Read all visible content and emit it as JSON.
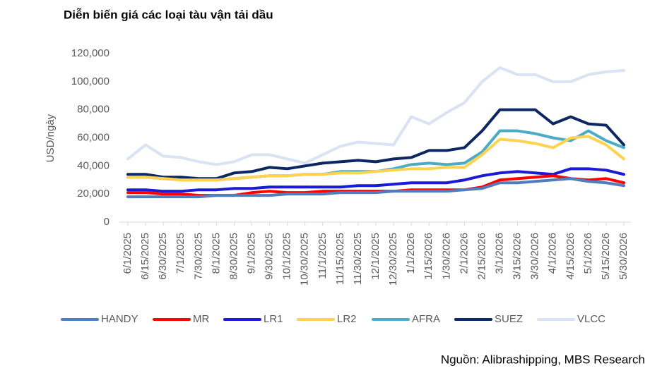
{
  "chart_data": {
    "type": "line",
    "title": "Diễn biến giá các loại tàu vận tải dầu",
    "y_label": "USD/ngày",
    "source": "Nguồn: Alibrashipping, MBS Research",
    "categories": [
      "6/1/2025",
      "6/15/2025",
      "6/30/2025",
      "7/1/2025",
      "7/30/2025",
      "8/1/2025",
      "8/30/2025",
      "9/1/2025",
      "9/30/2025",
      "10/1/2025",
      "10/30/2025",
      "11/1/2025",
      "11/15/2025",
      "11/30/2025",
      "12/1/2025",
      "12/30/2025",
      "1/1/2026",
      "1/15/2026",
      "1/30/2026",
      "2/1/2026",
      "2/15/2026",
      "3/1/2026",
      "3/15/2026",
      "3/30/2026",
      "4/1/2026",
      "4/15/2026",
      "5/1/2026",
      "5/15/2026",
      "5/30/2026"
    ],
    "ylim": [
      0,
      120000
    ],
    "yticks": [
      0,
      {
        "value": 20000,
        "label": "20,000"
      },
      {
        "value": 40000,
        "label": "40,000"
      },
      {
        "value": 60000,
        "label": "60,000"
      },
      {
        "value": 80000,
        "label": "80,000"
      },
      {
        "value": 100000,
        "label": "100,000"
      },
      {
        "value": 120000,
        "label": "120,000"
      }
    ],
    "legend": "bottom",
    "series": [
      {
        "name": "HANDY",
        "color": "#4f7dbd",
        "values": [
          18000,
          18000,
          18000,
          18000,
          18000,
          19000,
          19000,
          19000,
          19000,
          20000,
          20000,
          20000,
          21000,
          21000,
          21000,
          22000,
          22000,
          22000,
          22000,
          23000,
          24000,
          28000,
          28000,
          29000,
          30000,
          31000,
          29000,
          28000,
          26000
        ]
      },
      {
        "name": "MR",
        "color": "#ff0000",
        "values": [
          21000,
          21000,
          20000,
          20000,
          19000,
          19000,
          19000,
          21000,
          22000,
          21000,
          21000,
          22000,
          22000,
          22000,
          22000,
          22000,
          23000,
          23000,
          23000,
          23000,
          25000,
          30000,
          31000,
          32000,
          33000,
          31000,
          30000,
          31000,
          28000
        ]
      },
      {
        "name": "LR1",
        "color": "#1a1ad8",
        "values": [
          23000,
          23000,
          22000,
          22000,
          23000,
          23000,
          24000,
          24000,
          25000,
          25000,
          25000,
          25000,
          25000,
          26000,
          26000,
          27000,
          28000,
          28000,
          28000,
          30000,
          33000,
          35000,
          36000,
          35000,
          34000,
          38000,
          38000,
          37000,
          34000
        ]
      },
      {
        "name": "LR2",
        "color": "#ffd34f",
        "values": [
          32000,
          32000,
          31000,
          30000,
          30000,
          30000,
          31000,
          32000,
          33000,
          33000,
          34000,
          34000,
          35000,
          35000,
          36000,
          37000,
          38000,
          38000,
          39000,
          39000,
          48000,
          59000,
          58000,
          56000,
          53000,
          60000,
          61000,
          55000,
          45000
        ]
      },
      {
        "name": "AFRA",
        "color": "#4bacc6",
        "values": [
          32000,
          32000,
          31000,
          30000,
          30000,
          30000,
          31000,
          32000,
          33000,
          33000,
          34000,
          34000,
          36000,
          36000,
          36000,
          38000,
          41000,
          42000,
          41000,
          42000,
          50000,
          65000,
          65000,
          63000,
          60000,
          58000,
          65000,
          58000,
          53000
        ]
      },
      {
        "name": "SUEZ",
        "color": "#0d2763",
        "values": [
          34000,
          34000,
          32000,
          32000,
          31000,
          31000,
          35000,
          36000,
          39000,
          38000,
          40000,
          42000,
          43000,
          44000,
          43000,
          45000,
          46000,
          51000,
          51000,
          53000,
          65000,
          80000,
          80000,
          80000,
          70000,
          75000,
          70000,
          69000,
          55000
        ]
      },
      {
        "name": "VLCC",
        "color": "#dae3f3",
        "values": [
          45000,
          55000,
          47000,
          46000,
          43000,
          41000,
          43000,
          48000,
          48000,
          45000,
          42000,
          48000,
          54000,
          57000,
          56000,
          55000,
          75000,
          70000,
          78000,
          85000,
          100000,
          110000,
          105000,
          105000,
          100000,
          100000,
          105000,
          107000,
          108000
        ]
      }
    ]
  }
}
